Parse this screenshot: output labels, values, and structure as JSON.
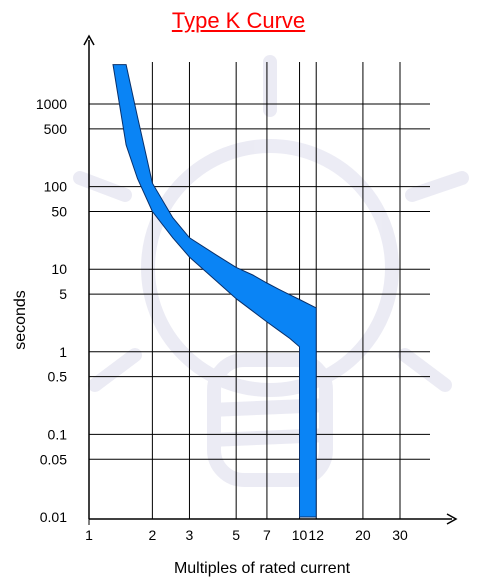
{
  "chart_data": {
    "type": "area",
    "title": "Type K Curve",
    "xlabel": "Multiples of rated current",
    "ylabel": "seconds",
    "x_scale": "log",
    "y_scale": "log",
    "x_ticks": [
      1,
      2,
      3,
      5,
      7,
      10,
      12,
      20,
      30
    ],
    "y_ticks": [
      0.01,
      0.05,
      0.1,
      0.5,
      1,
      5,
      10,
      50,
      100,
      500,
      1000
    ],
    "grid": true,
    "band": {
      "upper": {
        "x": [
          1.5,
          1.7,
          2.0,
          2.5,
          3.0,
          4.0,
          5.0,
          6.0,
          7.0,
          8.0,
          9.0,
          10.0,
          12.0
        ],
        "y": [
          3000,
          700,
          110,
          42,
          24,
          15,
          10.5,
          8.5,
          6.8,
          5.7,
          4.9,
          4.3,
          3.4
        ]
      },
      "lower": {
        "x": [
          1.3,
          1.5,
          1.7,
          2.0,
          2.5,
          3.0,
          4.0,
          5.0,
          6.0,
          7.0,
          8.0,
          9.0,
          10.0,
          10.0
        ],
        "y": [
          3000,
          320,
          125,
          50,
          24,
          14,
          7.3,
          4.4,
          3.1,
          2.3,
          1.8,
          1.45,
          1.15,
          0.01
        ]
      },
      "right_edge_x": 12.0,
      "bottom_y": 0.01
    },
    "colors": {
      "band_fill": "#0a84f5",
      "band_stroke": "#08306b",
      "title": "#ff0000"
    }
  }
}
